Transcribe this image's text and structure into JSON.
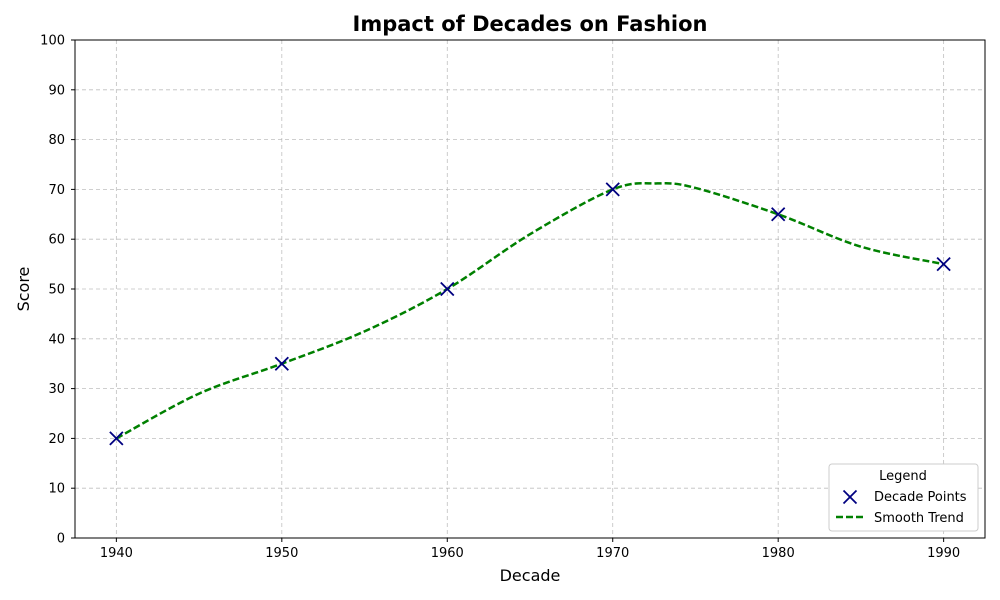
{
  "chart_data": {
    "type": "line",
    "title": "Impact of Decades on Fashion",
    "xlabel": "Decade",
    "ylabel": "Score",
    "xlim": [
      1937.5,
      1992.5
    ],
    "ylim": [
      0,
      100
    ],
    "x_ticks": [
      1940,
      1950,
      1960,
      1970,
      1980,
      1990
    ],
    "y_ticks": [
      0,
      10,
      20,
      30,
      40,
      50,
      60,
      70,
      80,
      90,
      100
    ],
    "grid": true,
    "legend": {
      "title": "Legend",
      "position": "bottom-right"
    },
    "series": [
      {
        "name": "Decade Points",
        "kind": "scatter",
        "marker": "x",
        "color": "#000080",
        "x": [
          1940,
          1950,
          1960,
          1970,
          1980,
          1990
        ],
        "y": [
          20,
          35,
          50,
          70,
          65,
          55
        ]
      },
      {
        "name": "Smooth Trend",
        "kind": "line",
        "style": "dashed",
        "color": "#008000",
        "x": [
          1940,
          1945,
          1950,
          1955,
          1960,
          1965,
          1970,
          1972.7,
          1975,
          1980,
          1985,
          1990
        ],
        "y": [
          20,
          29,
          35,
          41.5,
          50,
          61,
          70,
          71.2,
          70.3,
          65,
          58.5,
          55
        ]
      }
    ]
  }
}
